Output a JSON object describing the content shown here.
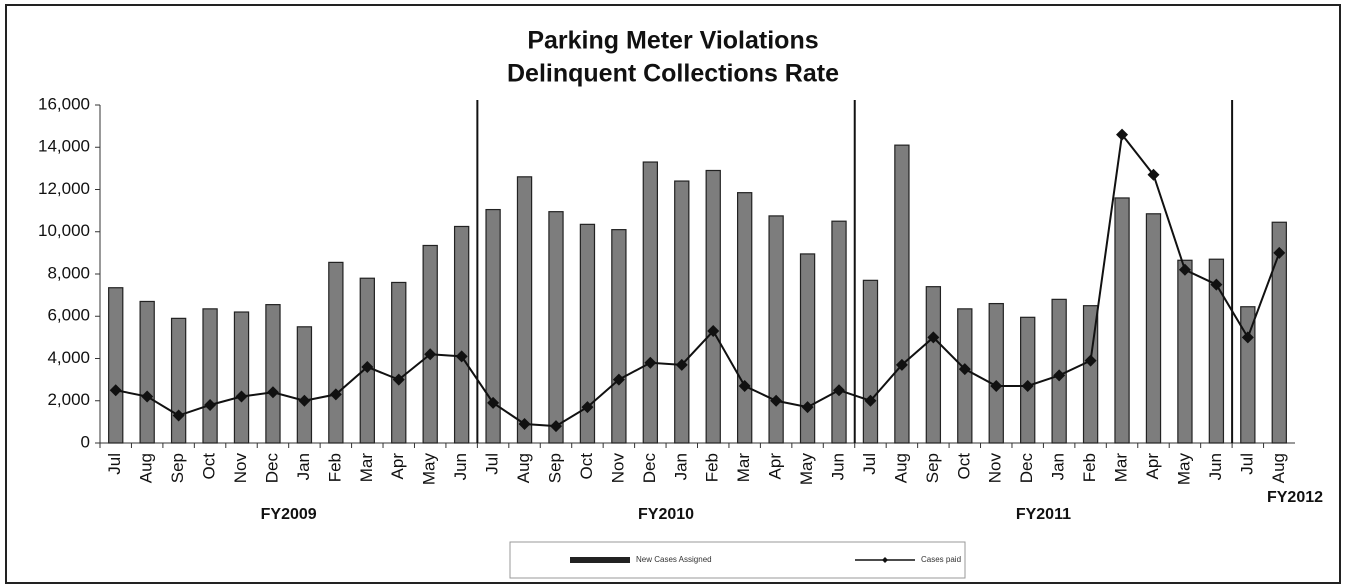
{
  "chart_data": {
    "type": "bar_line",
    "title": "Parking Meter Violations",
    "subtitle": "Delinquent Collections Rate",
    "categories": [
      "Jul",
      "Aug",
      "Sep",
      "Oct",
      "Nov",
      "Dec",
      "Jan",
      "Feb",
      "Mar",
      "Apr",
      "May",
      "Jun",
      "Jul",
      "Aug",
      "Sep",
      "Oct",
      "Nov",
      "Dec",
      "Jan",
      "Feb",
      "Mar",
      "Apr",
      "May",
      "Jun",
      "Jul",
      "Aug",
      "Sep",
      "Oct",
      "Nov",
      "Dec",
      "Jan",
      "Feb",
      "Mar",
      "Apr",
      "May",
      "Jun",
      "Jul",
      "Aug"
    ],
    "group_labels": [
      "FY2009",
      "FY2010",
      "FY2011",
      "FY2012"
    ],
    "series": [
      {
        "name": "New Cases Assigned",
        "type": "bar",
        "color": "#7d7d7d",
        "values": [
          7350,
          6700,
          5900,
          6350,
          6200,
          6550,
          5500,
          8550,
          7800,
          7600,
          9350,
          10250,
          11050,
          12600,
          10950,
          10350,
          10100,
          13300,
          12400,
          12900,
          11850,
          10750,
          8950,
          10500,
          7700,
          14100,
          7400,
          6350,
          6600,
          5950,
          6800,
          6500,
          11600,
          10850,
          8650,
          8700,
          6450,
          10450
        ]
      },
      {
        "name": "Cases paid",
        "type": "line",
        "color": "#111111",
        "values": [
          2500,
          2200,
          1300,
          1800,
          2200,
          2400,
          2000,
          2300,
          3600,
          3000,
          4200,
          4100,
          1900,
          900,
          800,
          1700,
          3000,
          3800,
          3700,
          5300,
          2700,
          2000,
          1700,
          2500,
          2000,
          3700,
          5000,
          3500,
          2700,
          2700,
          3200,
          3900,
          14600,
          12700,
          8200,
          7500,
          5000,
          9000
        ]
      }
    ],
    "ylim": [
      0,
      16000
    ],
    "yticks": [
      0,
      {
        "value": 2000,
        "label": "2,000"
      },
      {
        "value": 4000,
        "label": "4,000"
      },
      {
        "value": 6000,
        "label": "6,000"
      },
      {
        "value": 8000,
        "label": "8,000"
      },
      {
        "value": 10000,
        "label": "10,000"
      },
      {
        "value": 12000,
        "label": "12,000"
      },
      {
        "value": 14000,
        "label": "14,000"
      },
      {
        "value": 16000,
        "label": "16,000"
      }
    ],
    "legend": "bottom"
  }
}
